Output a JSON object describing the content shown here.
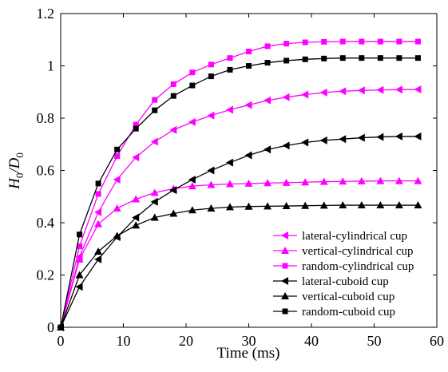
{
  "chart_data": {
    "type": "line",
    "xlabel": "Time (ms)",
    "ylabel": {
      "base": "H",
      "sub": "0",
      "sep": "/D",
      "sub2": "0"
    },
    "xlim": [
      0,
      60
    ],
    "ylim": [
      0,
      1.2
    ],
    "xticks": [
      "0",
      "10",
      "20",
      "30",
      "40",
      "50",
      "60"
    ],
    "yticks": [
      "0",
      "0.2",
      "0.4",
      "0.6",
      "0.8",
      "1",
      "1.2"
    ],
    "grid": false,
    "legend_position": "bottom-right",
    "x": [
      0,
      3,
      6,
      9,
      12,
      15,
      18,
      21,
      24,
      27,
      30,
      33,
      36,
      39,
      42,
      45,
      48,
      51,
      54,
      57
    ],
    "series": [
      {
        "name": "lateral-cylindrical cup",
        "color": "#ff00ff",
        "marker": "triangle-left",
        "values": [
          0,
          0.27,
          0.44,
          0.565,
          0.65,
          0.71,
          0.755,
          0.785,
          0.81,
          0.832,
          0.85,
          0.868,
          0.88,
          0.89,
          0.898,
          0.903,
          0.906,
          0.908,
          0.909,
          0.91
        ]
      },
      {
        "name": "vertical-cylindrical cup",
        "color": "#ff00ff",
        "marker": "triangle-up",
        "values": [
          0,
          0.26,
          0.395,
          0.455,
          0.49,
          0.515,
          0.53,
          0.54,
          0.545,
          0.548,
          0.55,
          0.552,
          0.553,
          0.555,
          0.557,
          0.558,
          0.559,
          0.56,
          0.56,
          0.56
        ]
      },
      {
        "name": "random-cylindrical cup",
        "color": "#ff00ff",
        "marker": "square",
        "values": [
          0,
          0.31,
          0.51,
          0.655,
          0.775,
          0.87,
          0.93,
          0.975,
          1.005,
          1.03,
          1.055,
          1.075,
          1.085,
          1.09,
          1.092,
          1.093,
          1.093,
          1.093,
          1.093,
          1.093
        ]
      },
      {
        "name": "lateral-cuboid cup",
        "color": "#000000",
        "marker": "triangle-left",
        "values": [
          0,
          0.155,
          0.26,
          0.345,
          0.42,
          0.48,
          0.525,
          0.565,
          0.6,
          0.63,
          0.658,
          0.68,
          0.695,
          0.707,
          0.715,
          0.72,
          0.725,
          0.728,
          0.73,
          0.73
        ]
      },
      {
        "name": "vertical-cuboid cup",
        "color": "#000000",
        "marker": "triangle-up",
        "values": [
          0,
          0.2,
          0.29,
          0.35,
          0.39,
          0.42,
          0.435,
          0.448,
          0.455,
          0.46,
          0.462,
          0.463,
          0.464,
          0.465,
          0.466,
          0.467,
          0.467,
          0.467,
          0.467,
          0.467
        ]
      },
      {
        "name": "random-cuboid cup",
        "color": "#000000",
        "marker": "square",
        "values": [
          0,
          0.355,
          0.55,
          0.68,
          0.76,
          0.83,
          0.885,
          0.925,
          0.96,
          0.985,
          1.0,
          1.012,
          1.02,
          1.025,
          1.028,
          1.03,
          1.03,
          1.03,
          1.03,
          1.03
        ]
      }
    ]
  }
}
